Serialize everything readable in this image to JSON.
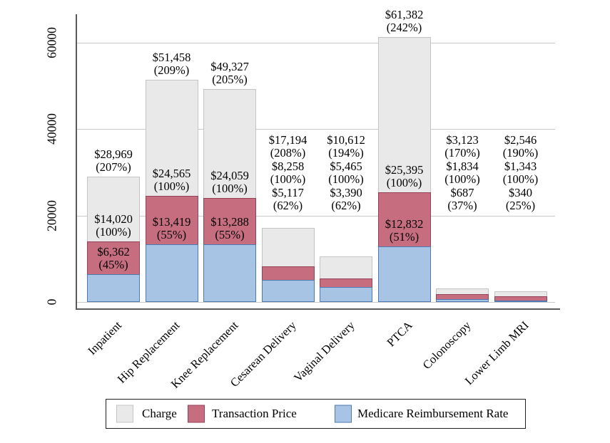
{
  "chart_data": {
    "type": "bar",
    "variant": "overlaid-bars",
    "title": "",
    "xlabel": "",
    "ylabel": "",
    "categories": [
      "Inpatient",
      "Hip Replacement",
      "Knee Replacement",
      "Cesarean Delivery",
      "Vaginal Delivery",
      "PTCA",
      "Colonoscopy",
      "Lower Limb MRI"
    ],
    "series": [
      {
        "name": "Charge",
        "color": "#e9e9e9",
        "border_color": "#c4c4c4",
        "values": [
          28969,
          51458,
          49327,
          17194,
          10612,
          61382,
          3123,
          2546
        ],
        "value_labels": [
          "$28,969",
          "$51,458",
          "$49,327",
          "$17,194",
          "$10,612",
          "$61,382",
          "$3,123",
          "$2,546"
        ],
        "pct_labels": [
          "(207%)",
          "(209%)",
          "(205%)",
          "(208%)",
          "(194%)",
          "(242%)",
          "(170%)",
          "(190%)"
        ]
      },
      {
        "name": "Transaction Price",
        "color": "#c66e80",
        "border_color": "#94425a",
        "values": [
          14020,
          24565,
          24059,
          8258,
          5465,
          25395,
          1834,
          1343
        ],
        "value_labels": [
          "$14,020",
          "$24,565",
          "$24,059",
          "$8,258",
          "$5,465",
          "$25,395",
          "$1,834",
          "$1,343"
        ],
        "pct_labels": [
          "(100%)",
          "(100%)",
          "(100%)",
          "(100%)",
          "(100%)",
          "(100%)",
          "(100%)",
          "(100%)"
        ]
      },
      {
        "name": "Medicare Reimbursement Rate",
        "color": "#a7c4e4",
        "border_color": "#4d7ab5",
        "values": [
          6362,
          13419,
          13288,
          5117,
          3390,
          12832,
          687,
          340
        ],
        "value_labels": [
          "$6,362",
          "$13,419",
          "$13,288",
          "$5,117",
          "$3,390",
          "$12,832",
          "$687",
          "$340"
        ],
        "pct_labels": [
          "(45%)",
          "(55%)",
          "(55%)",
          "(62%)",
          "(62%)",
          "(51%)",
          "(37%)",
          "(25%)"
        ]
      }
    ],
    "y_axis": {
      "tick_values": [
        0,
        20000,
        40000,
        60000
      ],
      "tick_labels": [
        "0",
        "20000",
        "40000",
        "60000"
      ],
      "range": [
        0,
        66000
      ]
    },
    "grid": "horizontal",
    "legend": {
      "position": "bottom",
      "entries": [
        "Charge",
        "Transaction Price",
        "Medicare Reimbursement Rate"
      ]
    }
  }
}
